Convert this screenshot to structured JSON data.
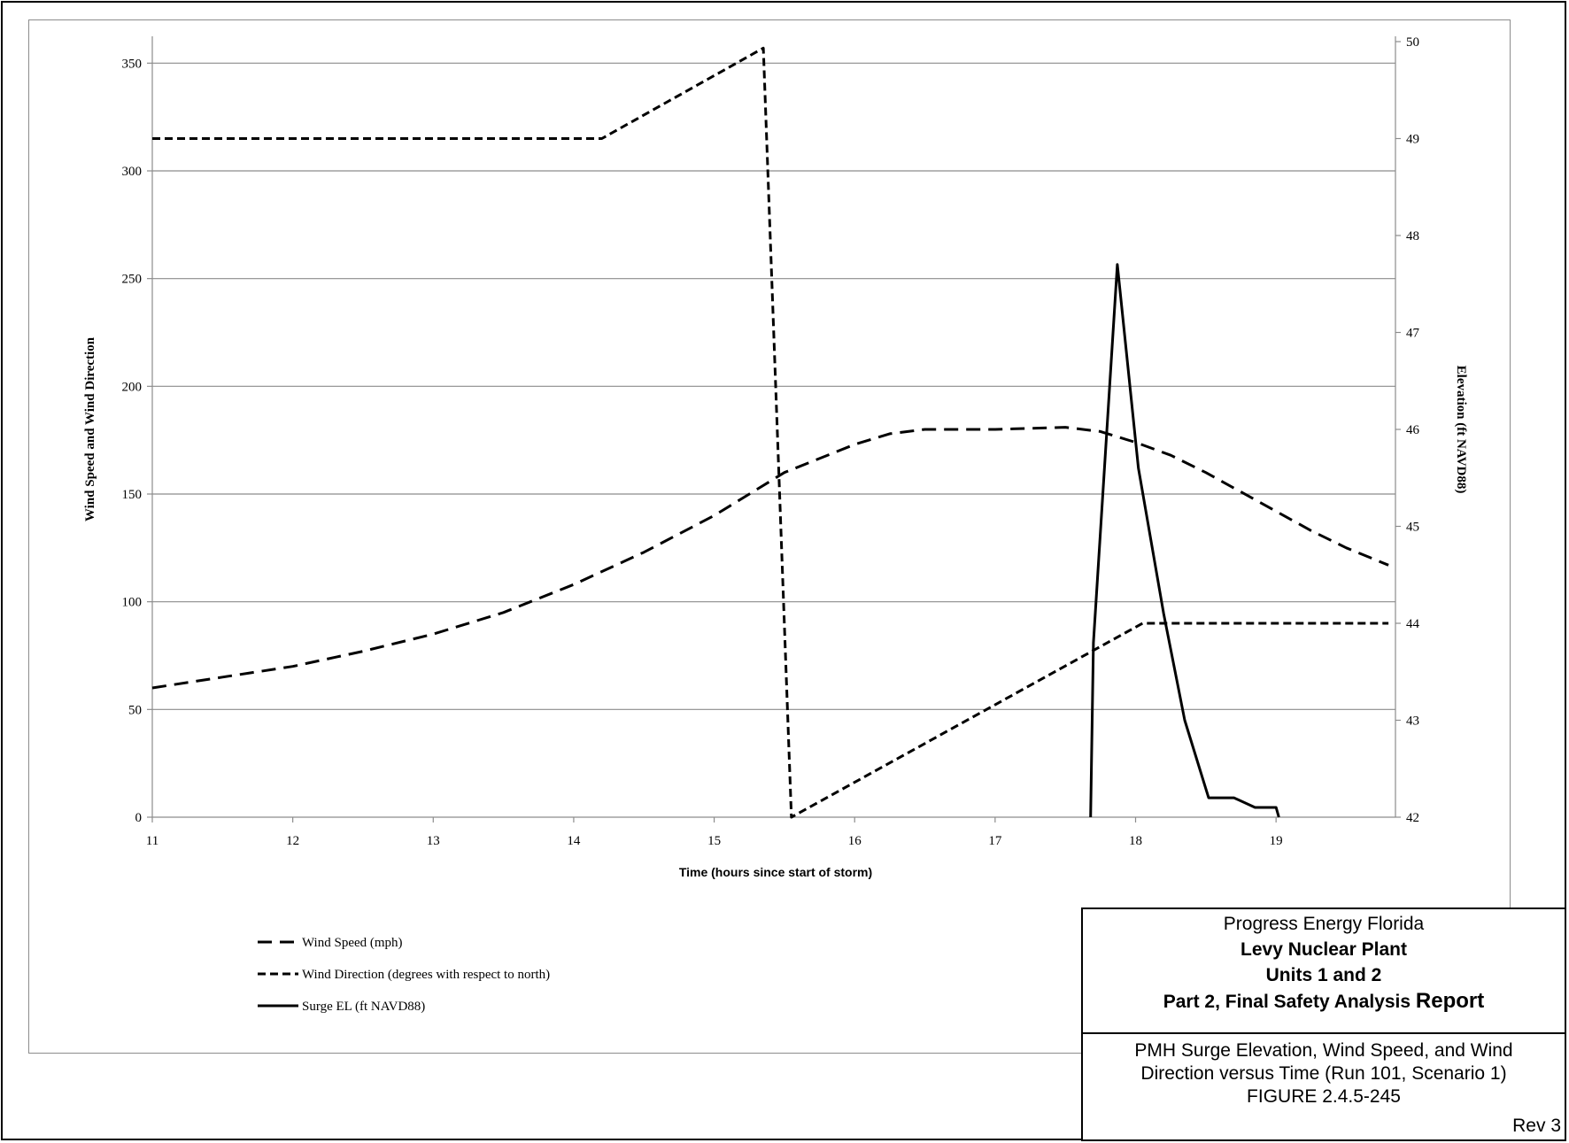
{
  "chart_data": {
    "type": "line",
    "xlabel": "Time (hours since start of storm)",
    "ylabel": "Wind Speed and Wind Direction",
    "y2label": "Elevation (ft NAVD88)",
    "xlim": [
      11,
      19.85
    ],
    "ylim": [
      0,
      360
    ],
    "y2lim": [
      42,
      50
    ],
    "x_ticks": [
      "11",
      "12",
      "13",
      "14",
      "15",
      "16",
      "17",
      "18",
      "19"
    ],
    "y_ticks": [
      "0",
      "50",
      "100",
      "150",
      "200",
      "250",
      "300",
      "350"
    ],
    "y2_ticks": [
      "42",
      "43",
      "44",
      "45",
      "46",
      "47",
      "48",
      "49",
      "50"
    ],
    "grid": "horizontal major gridlines",
    "legend_position": "bottom-left",
    "series": [
      {
        "name": "Wind Speed (mph)",
        "axis": "left",
        "style": "long-dash",
        "x": [
          11.0,
          11.5,
          12.0,
          12.5,
          13.0,
          13.5,
          14.0,
          14.5,
          15.0,
          15.5,
          16.0,
          16.25,
          16.5,
          17.0,
          17.5,
          17.75,
          18.0,
          18.25,
          18.5,
          18.75,
          19.0,
          19.25,
          19.5,
          19.8
        ],
        "y": [
          60,
          65,
          70,
          77,
          85,
          95,
          108,
          123,
          140,
          160,
          173,
          178,
          180,
          180,
          181,
          179,
          174,
          168,
          160,
          151,
          142,
          133,
          125,
          117
        ]
      },
      {
        "name": "Wind Direction (degrees with respect to north)",
        "axis": "left",
        "style": "short-dash",
        "x": [
          11.0,
          14.2,
          15.35,
          15.55,
          18.05,
          19.8
        ],
        "y": [
          315,
          315,
          357,
          0,
          90,
          90
        ]
      },
      {
        "name": "Surge EL (ft NAVD88)",
        "axis": "right",
        "style": "solid",
        "x": [
          17.68,
          17.7,
          17.87,
          18.02,
          18.2,
          18.35,
          18.52,
          18.7,
          18.85,
          19.0,
          19.02
        ],
        "y": [
          42.0,
          43.8,
          47.7,
          45.6,
          44.1,
          43.0,
          42.2,
          42.2,
          42.1,
          42.1,
          42.0
        ]
      }
    ]
  },
  "title_block": {
    "company": "Progress Energy Florida",
    "plant": "Levy Nuclear Plant",
    "units": "Units 1 and 2",
    "report_prefix": "Part 2, Final Safety Analysis ",
    "report_suffix": "Report",
    "caption_line1": "PMH Surge Elevation, Wind Speed, and Wind",
    "caption_line2": "Direction versus Time (Run 101, Scenario 1)",
    "figure": "FIGURE 2.4.5-245",
    "rev": "Rev 3"
  }
}
